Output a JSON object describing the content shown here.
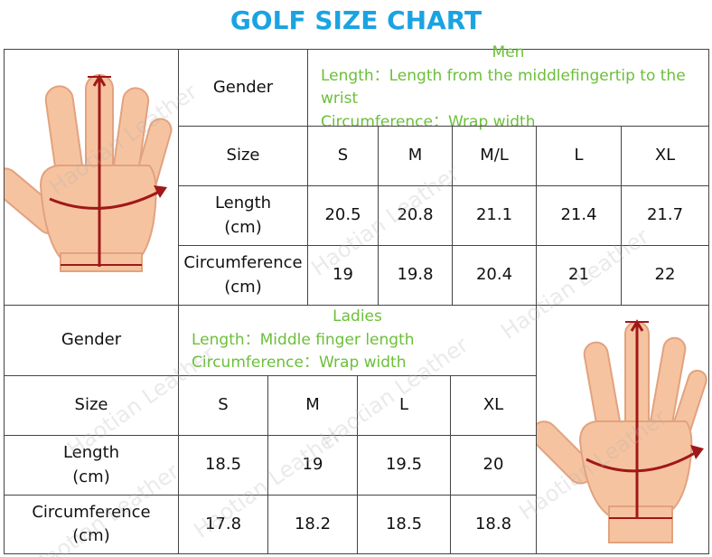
{
  "header": {
    "title": "GOLF SIZE CHART"
  },
  "watermark": "Haotian Leather",
  "men": {
    "gender_label": "Gender",
    "gender": "Men",
    "notes": [
      "Length：Length from the middlefingertip to the wrist",
      "Circumference：Wrap width"
    ],
    "rows": [
      [
        "Size",
        "S",
        "M",
        "M/L",
        "L",
        "XL"
      ],
      [
        "Length\n(cm)",
        20.5,
        20.8,
        21.1,
        21.4,
        21.7
      ],
      [
        "Circumference\n(cm)",
        19,
        19.8,
        20.4,
        21,
        22
      ]
    ]
  },
  "ladies": {
    "gender_label": "Gender",
    "gender": "Ladies",
    "notes": [
      "Length：Middle finger length",
      "Circumference：Wrap width"
    ],
    "rows": [
      [
        "Size",
        "S",
        "M",
        "L",
        "XL"
      ],
      [
        "Length\n(cm)",
        18.5,
        19,
        19.5,
        20
      ],
      [
        "Circumference\n(cm)",
        17.8,
        18.2,
        18.5,
        18.8
      ]
    ]
  }
}
